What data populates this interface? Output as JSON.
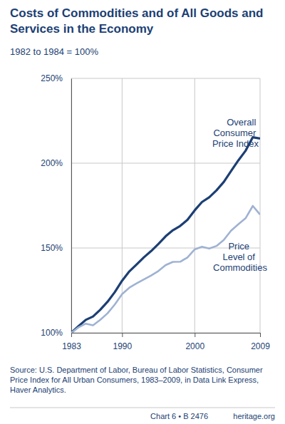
{
  "chart_data": {
    "type": "line",
    "title": "Costs of Commodities and of All Goods and Services in the Economy",
    "subtitle": "1982 to 1984 = 100%",
    "x": [
      1983,
      1984,
      1985,
      1986,
      1987,
      1988,
      1989,
      1990,
      1991,
      1992,
      1993,
      1994,
      1995,
      1996,
      1997,
      1998,
      1999,
      2000,
      2001,
      2002,
      2003,
      2004,
      2005,
      2006,
      2007,
      2008,
      2009
    ],
    "series": [
      {
        "name": "Overall Consumer Price Index",
        "color": "#1c3f74",
        "values": [
          100,
          103.9,
          107.6,
          109.6,
          113.6,
          118.3,
          124.0,
          130.7,
          136.2,
          140.3,
          144.5,
          148.2,
          152.4,
          156.9,
          160.5,
          163.0,
          166.6,
          172.2,
          177.1,
          179.9,
          184.0,
          188.9,
          195.3,
          201.6,
          207.3,
          215.3,
          214.5
        ]
      },
      {
        "name": "Price Level of Commodities",
        "color": "#9fb2d3",
        "values": [
          100,
          103.2,
          105.4,
          104.4,
          107.7,
          111.5,
          116.7,
          122.8,
          126.6,
          129.1,
          131.5,
          133.8,
          136.4,
          139.9,
          141.8,
          141.9,
          144.4,
          149.2,
          150.7,
          149.7,
          151.2,
          154.7,
          160.2,
          164.0,
          167.5,
          174.8,
          169.7
        ]
      }
    ],
    "xlim": [
      1983,
      2009
    ],
    "xticks": [
      1983,
      1990,
      2000,
      2009
    ],
    "ylim": [
      100,
      250
    ],
    "yticks": [
      {
        "value": 100,
        "label": "100%"
      },
      {
        "value": 150,
        "label": "150%"
      },
      {
        "value": 200,
        "label": "200%"
      },
      {
        "value": 250,
        "label": "250%"
      }
    ],
    "grid": true,
    "source": "Source: U.S. Department of Labor, Bureau of Labor Statistics, Consumer Price Index for All Urban Consumers, 1983–2009, in Data Link Express, Haver Analytics.",
    "footer": "Chart 6 • B 2476",
    "site": "heritage.org"
  }
}
